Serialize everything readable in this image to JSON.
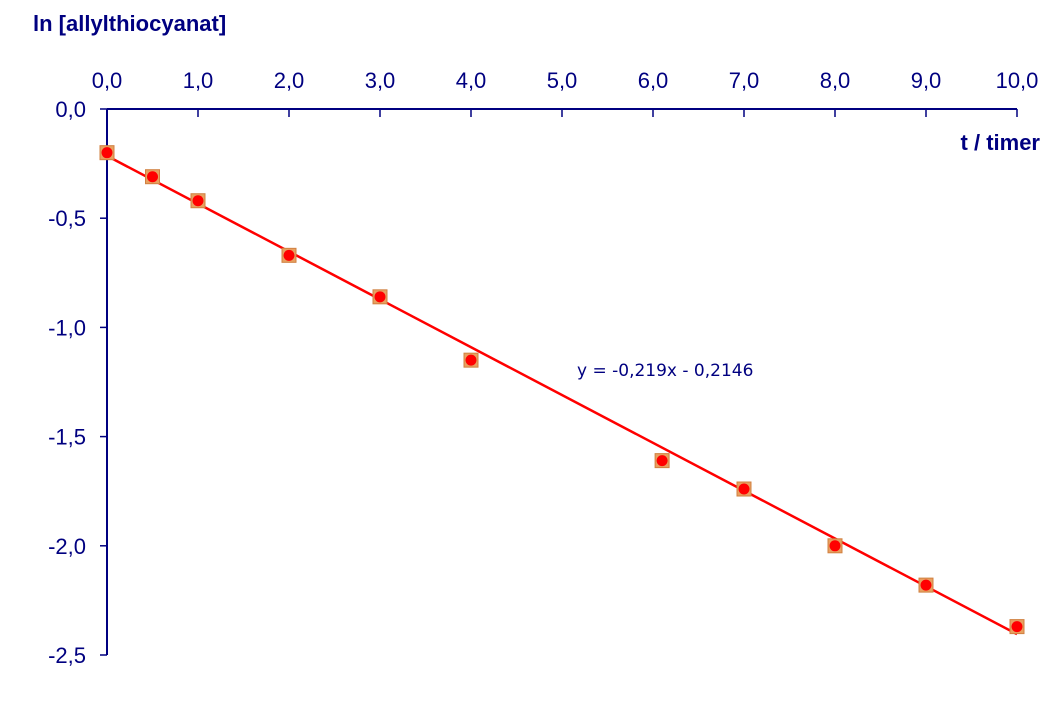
{
  "chart_data": {
    "type": "scatter",
    "ylabel": "ln [allylthiocyanat]",
    "xlabel": "t / timer",
    "xlim": [
      0,
      10
    ],
    "ylim": [
      -2.5,
      0
    ],
    "x_ticks": [
      0,
      1,
      2,
      3,
      4,
      5,
      6,
      7,
      8,
      9,
      10
    ],
    "x_tick_labels": [
      "0,0",
      "1,0",
      "2,0",
      "3,0",
      "4,0",
      "5,0",
      "6,0",
      "7,0",
      "8,0",
      "9,0",
      "10,0"
    ],
    "y_ticks": [
      0,
      -0.5,
      -1,
      -1.5,
      -2,
      -2.5
    ],
    "y_tick_labels": [
      "0,0",
      "-0,5",
      "-1,0",
      "-1,5",
      "-2,0",
      "-2,5"
    ],
    "x_axis_position": "top",
    "grid": false,
    "series": [
      {
        "x": [
          0,
          0.5,
          1,
          2,
          3,
          4,
          6.1,
          7,
          8,
          9,
          10
        ],
        "y": [
          -0.2,
          -0.31,
          -0.42,
          -0.67,
          -0.86,
          -1.15,
          -1.61,
          -1.74,
          -2.0,
          -2.18,
          -2.37
        ],
        "color": "#ff0000",
        "marker_bg": "#e8a060"
      }
    ],
    "trendline": {
      "slope": -0.219,
      "intercept": -0.2146,
      "color": "#ff0000",
      "equation": "y = -0,219x - 0,2146"
    }
  }
}
